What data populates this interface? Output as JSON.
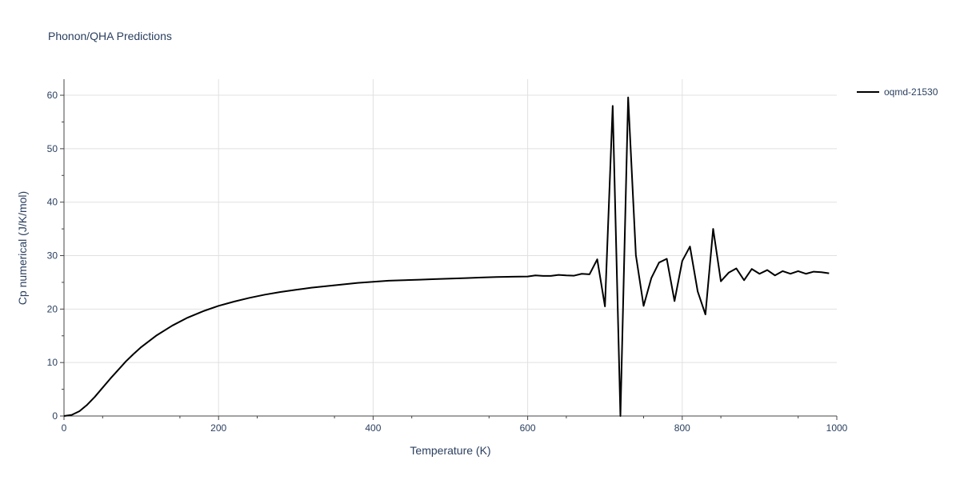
{
  "chart_data": {
    "type": "line",
    "title": "Phonon/QHA Predictions",
    "xlabel": "Temperature (K)",
    "ylabel": "Cp numerical (J/K/mol)",
    "xlim": [
      0,
      1000
    ],
    "ylim": [
      0,
      63
    ],
    "x_ticks": [
      0,
      200,
      400,
      600,
      800,
      1000
    ],
    "y_ticks": [
      0,
      10,
      20,
      30,
      40,
      50,
      60
    ],
    "x_tick_labels": [
      "0",
      "200",
      "400",
      "600",
      "800",
      "1000"
    ],
    "y_tick_labels": [
      "0",
      "10",
      "20",
      "30",
      "40",
      "50",
      "60"
    ],
    "grid": true,
    "legend_position": "top-right",
    "series": [
      {
        "name": "oqmd-21530",
        "color": "#000000",
        "x": [
          0,
          10,
          20,
          30,
          40,
          50,
          60,
          70,
          80,
          90,
          100,
          120,
          140,
          160,
          180,
          200,
          220,
          240,
          260,
          280,
          300,
          320,
          340,
          360,
          380,
          400,
          420,
          440,
          460,
          480,
          500,
          520,
          540,
          560,
          580,
          600,
          610,
          620,
          630,
          640,
          650,
          660,
          670,
          680,
          690,
          700,
          710,
          720,
          730,
          740,
          750,
          760,
          770,
          780,
          790,
          800,
          810,
          820,
          830,
          840,
          850,
          860,
          870,
          880,
          890,
          900,
          910,
          920,
          930,
          940,
          950,
          960,
          970,
          980,
          990
        ],
        "y": [
          0,
          0.2,
          0.9,
          2.1,
          3.6,
          5.3,
          7.0,
          8.6,
          10.2,
          11.6,
          12.9,
          15.1,
          16.9,
          18.4,
          19.6,
          20.6,
          21.4,
          22.1,
          22.7,
          23.2,
          23.6,
          24.0,
          24.3,
          24.6,
          24.9,
          25.1,
          25.3,
          25.4,
          25.5,
          25.6,
          25.7,
          25.8,
          25.9,
          26.0,
          26.05,
          26.1,
          26.3,
          26.2,
          26.2,
          26.4,
          26.3,
          26.25,
          26.6,
          26.5,
          29.3,
          20.5,
          58.0,
          0,
          59.6,
          30.1,
          20.6,
          25.8,
          28.7,
          29.4,
          21.5,
          29.0,
          31.7,
          23.3,
          19.0,
          35.0,
          25.2,
          26.8,
          27.6,
          25.4,
          27.5,
          26.6,
          27.3,
          26.3,
          27.1,
          26.6,
          27.1,
          26.6,
          27.0,
          26.9,
          26.7
        ]
      }
    ]
  }
}
